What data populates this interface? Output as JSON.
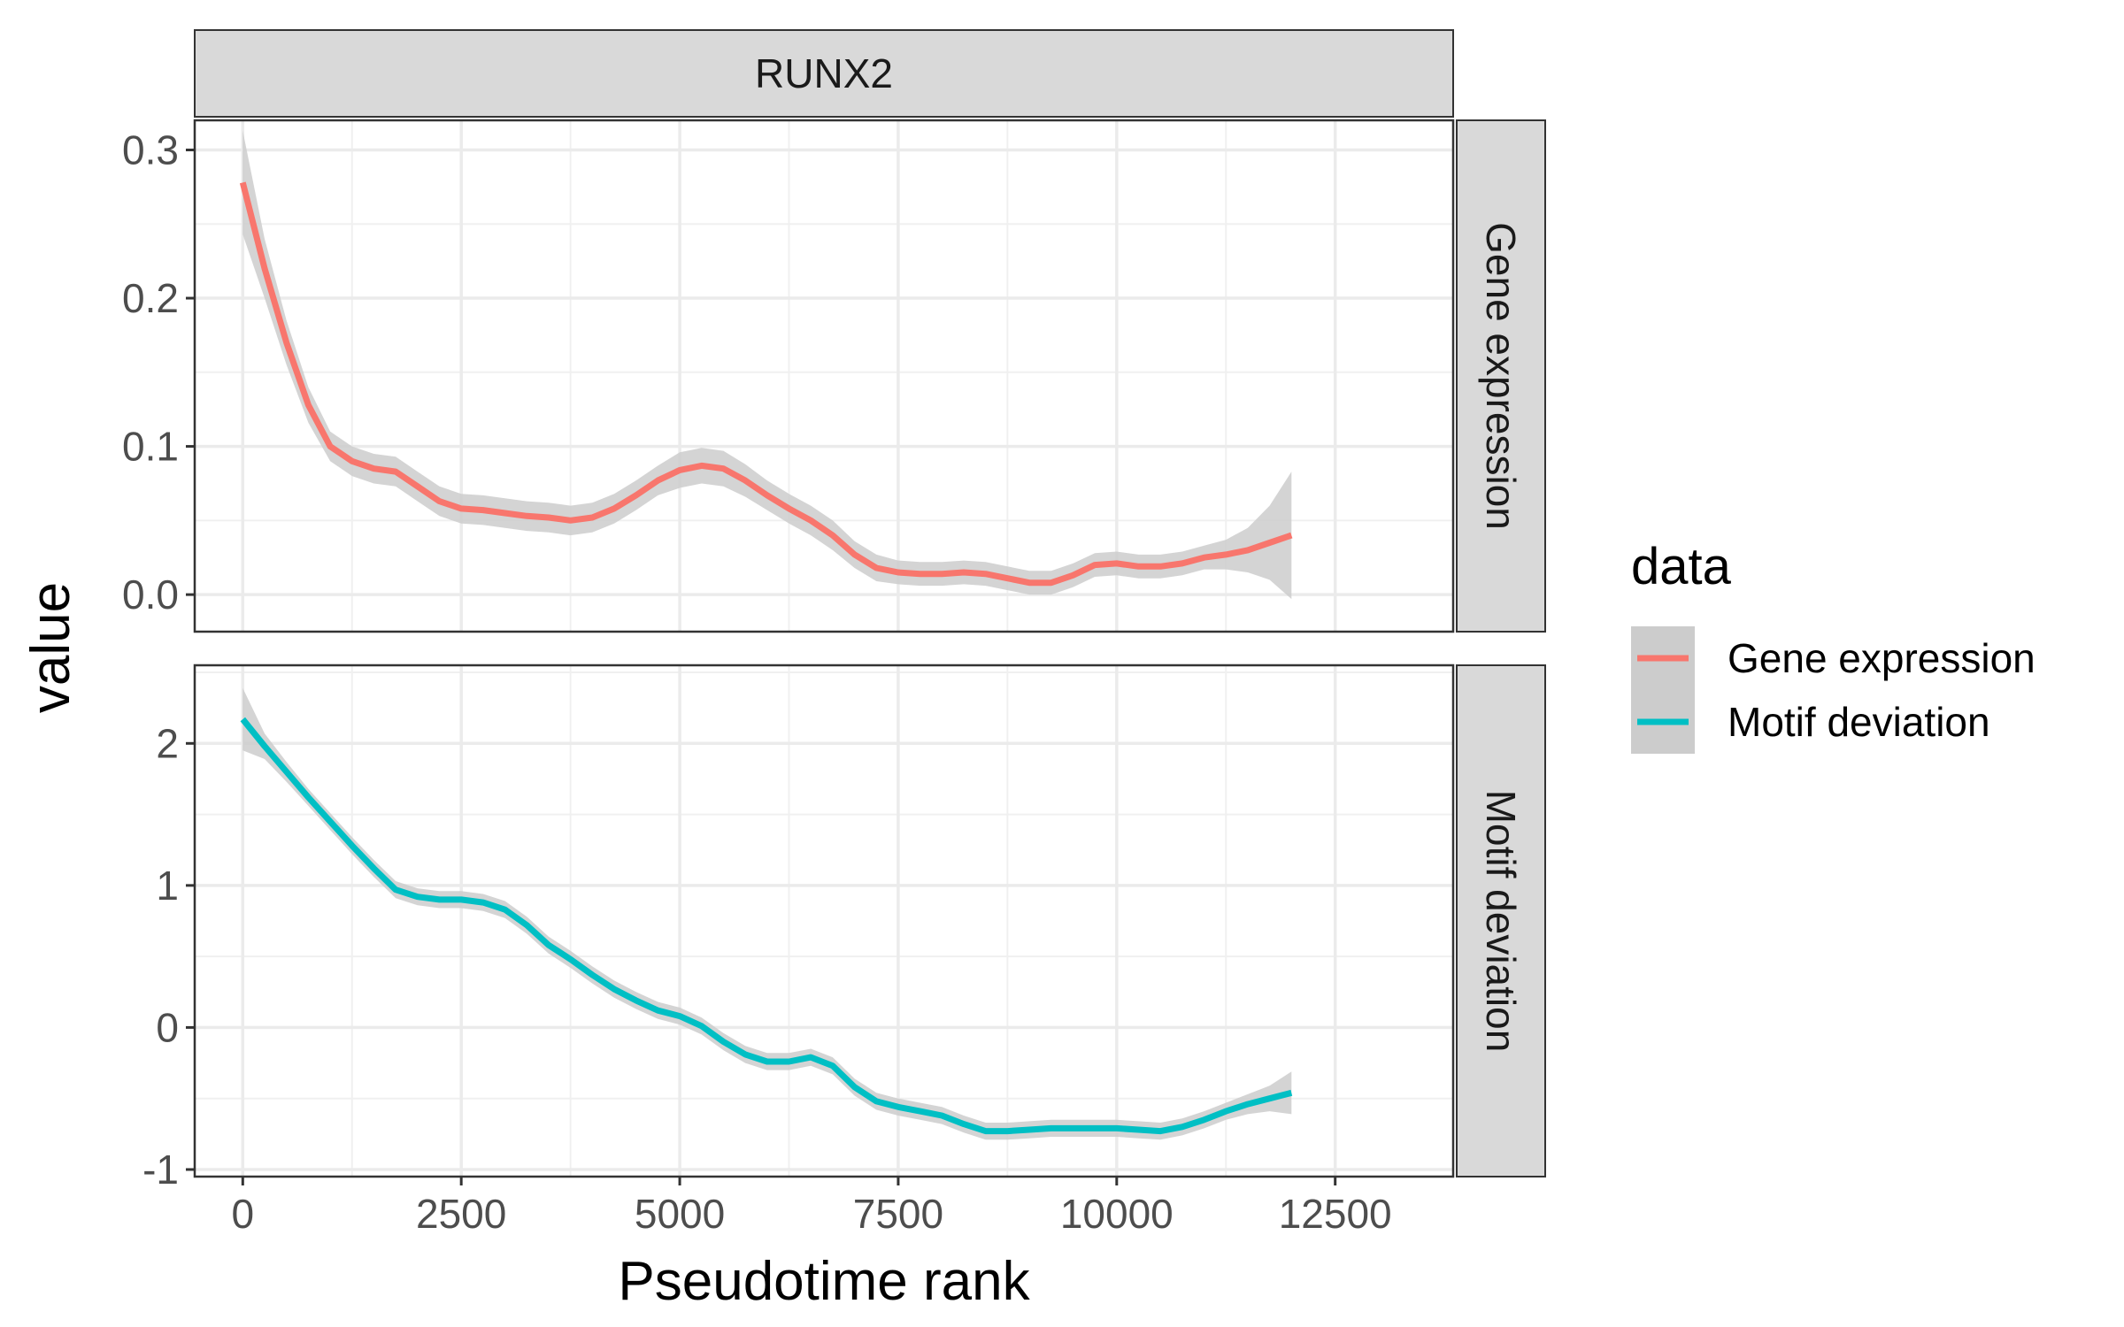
{
  "chart_data": {
    "type": "line",
    "facet_title": "RUNX2",
    "xlabel": "Pseudotime rank",
    "ylabel": "value",
    "xlim": [
      -550,
      13850
    ],
    "x_ticks": [
      0,
      2500,
      5000,
      7500,
      10000,
      12500
    ],
    "grid": true,
    "legend": {
      "title": "data",
      "position": "right",
      "entries": [
        "Gene expression",
        "Motif deviation"
      ]
    },
    "colors": {
      "Gene expression": "#F8766D",
      "Motif deviation": "#00BFC4",
      "confidence_band": "#cccccc"
    },
    "panels": [
      {
        "strip_label": "Gene expression",
        "series_name": "Gene expression",
        "ylim": [
          -0.025,
          0.32
        ],
        "y_ticks": [
          0.0,
          0.1,
          0.2,
          0.3
        ],
        "y_tick_labels": [
          "0.0",
          "0.1",
          "0.2",
          "0.3"
        ],
        "x": [
          0,
          250,
          500,
          750,
          1000,
          1250,
          1500,
          1750,
          2000,
          2250,
          2500,
          2750,
          3000,
          3250,
          3500,
          3750,
          4000,
          4250,
          4500,
          4750,
          5000,
          5250,
          5500,
          5750,
          6000,
          6250,
          6500,
          6750,
          7000,
          7250,
          7500,
          7750,
          8000,
          8250,
          8500,
          8750,
          9000,
          9250,
          9500,
          9750,
          10000,
          10250,
          10500,
          10750,
          11000,
          11250,
          11500,
          11750,
          12000
        ],
        "y": [
          0.278,
          0.22,
          0.17,
          0.128,
          0.1,
          0.09,
          0.085,
          0.083,
          0.073,
          0.063,
          0.058,
          0.057,
          0.055,
          0.053,
          0.052,
          0.05,
          0.052,
          0.058,
          0.067,
          0.077,
          0.084,
          0.087,
          0.085,
          0.077,
          0.067,
          0.058,
          0.05,
          0.04,
          0.027,
          0.018,
          0.015,
          0.014,
          0.014,
          0.015,
          0.014,
          0.011,
          0.008,
          0.008,
          0.013,
          0.02,
          0.021,
          0.019,
          0.019,
          0.021,
          0.025,
          0.027,
          0.03,
          0.035,
          0.04
        ],
        "ci_halfwidth": [
          0.035,
          0.02,
          0.015,
          0.012,
          0.01,
          0.01,
          0.01,
          0.01,
          0.01,
          0.01,
          0.01,
          0.01,
          0.01,
          0.01,
          0.01,
          0.01,
          0.01,
          0.01,
          0.01,
          0.01,
          0.012,
          0.012,
          0.012,
          0.011,
          0.01,
          0.01,
          0.01,
          0.01,
          0.009,
          0.009,
          0.008,
          0.008,
          0.008,
          0.008,
          0.008,
          0.008,
          0.008,
          0.008,
          0.008,
          0.008,
          0.008,
          0.008,
          0.008,
          0.008,
          0.008,
          0.01,
          0.015,
          0.025,
          0.043
        ]
      },
      {
        "strip_label": "Motif deviation",
        "series_name": "Motif deviation",
        "ylim": [
          -1.05,
          2.55
        ],
        "y_ticks": [
          -1,
          0,
          1,
          2
        ],
        "y_tick_labels": [
          "-1",
          "0",
          "1",
          "2"
        ],
        "x": [
          0,
          250,
          500,
          750,
          1000,
          1250,
          1500,
          1750,
          2000,
          2250,
          2500,
          2750,
          3000,
          3250,
          3500,
          3750,
          4000,
          4250,
          4500,
          4750,
          5000,
          5250,
          5500,
          5750,
          6000,
          6250,
          6500,
          6750,
          7000,
          7250,
          7500,
          7750,
          8000,
          8250,
          8500,
          8750,
          9000,
          9250,
          9500,
          9750,
          10000,
          10250,
          10500,
          10750,
          11000,
          11250,
          11500,
          11750,
          12000
        ],
        "y": [
          2.17,
          1.98,
          1.8,
          1.62,
          1.45,
          1.28,
          1.12,
          0.97,
          0.92,
          0.9,
          0.9,
          0.88,
          0.83,
          0.72,
          0.58,
          0.48,
          0.37,
          0.27,
          0.19,
          0.12,
          0.08,
          0.01,
          -0.1,
          -0.19,
          -0.24,
          -0.24,
          -0.21,
          -0.27,
          -0.42,
          -0.52,
          -0.56,
          -0.59,
          -0.62,
          -0.68,
          -0.73,
          -0.73,
          -0.72,
          -0.71,
          -0.71,
          -0.71,
          -0.71,
          -0.72,
          -0.73,
          -0.7,
          -0.65,
          -0.59,
          -0.54,
          -0.5,
          -0.46
        ],
        "ci_halfwidth": [
          0.22,
          0.09,
          0.07,
          0.06,
          0.06,
          0.06,
          0.06,
          0.06,
          0.06,
          0.06,
          0.06,
          0.06,
          0.06,
          0.06,
          0.06,
          0.06,
          0.06,
          0.06,
          0.06,
          0.06,
          0.06,
          0.06,
          0.06,
          0.06,
          0.06,
          0.06,
          0.06,
          0.06,
          0.06,
          0.06,
          0.06,
          0.06,
          0.06,
          0.06,
          0.06,
          0.06,
          0.06,
          0.06,
          0.06,
          0.06,
          0.06,
          0.06,
          0.06,
          0.06,
          0.06,
          0.06,
          0.07,
          0.09,
          0.15
        ]
      }
    ]
  }
}
